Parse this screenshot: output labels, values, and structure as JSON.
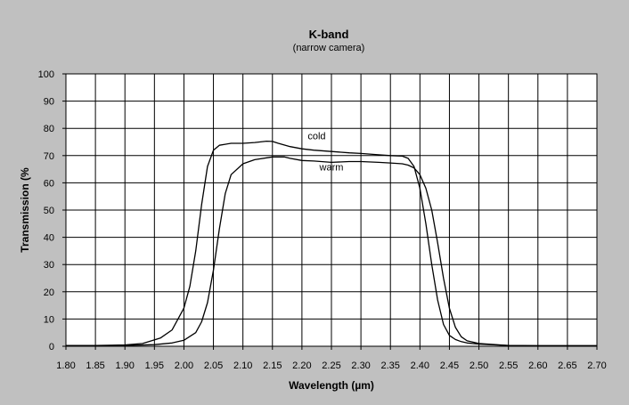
{
  "chart_data": {
    "type": "line",
    "title": "K-band",
    "subtitle": "(narrow camera)",
    "xlabel": "Wavelength (µm)",
    "ylabel": "Transmission (%",
    "xlim": [
      1.8,
      2.7
    ],
    "ylim": [
      0,
      100
    ],
    "xticks": [
      "1.80",
      "1.85",
      "1.90",
      "1.95",
      "2.00",
      "2.05",
      "2.10",
      "2.15",
      "2.20",
      "2.25",
      "2.30",
      "2.35",
      "2.40",
      "2.45",
      "2.50",
      "2.55",
      "2.60",
      "2.65",
      "2.70"
    ],
    "yticks": [
      "0",
      "10",
      "20",
      "30",
      "40",
      "50",
      "60",
      "70",
      "80",
      "90",
      "100"
    ],
    "grid": true,
    "background": "#c0c0c0",
    "plot_background": "#ffffff",
    "line_color": "#000000",
    "series": [
      {
        "name": "cold",
        "x": [
          1.8,
          1.85,
          1.9,
          1.93,
          1.96,
          1.98,
          2.0,
          2.01,
          2.02,
          2.03,
          2.04,
          2.05,
          2.06,
          2.08,
          2.1,
          2.12,
          2.14,
          2.15,
          2.16,
          2.18,
          2.2,
          2.22,
          2.25,
          2.28,
          2.3,
          2.33,
          2.35,
          2.37,
          2.38,
          2.39,
          2.4,
          2.41,
          2.42,
          2.43,
          2.44,
          2.45,
          2.46,
          2.47,
          2.48,
          2.5,
          2.55,
          2.6,
          2.7
        ],
        "y": [
          0.3,
          0.3,
          0.5,
          1.0,
          3.0,
          6.0,
          14.0,
          22.0,
          35.0,
          52.0,
          66.0,
          72.0,
          73.8,
          74.5,
          74.5,
          74.8,
          75.3,
          75.2,
          74.5,
          73.3,
          72.5,
          72.0,
          71.5,
          71.0,
          70.8,
          70.3,
          70.0,
          69.8,
          69.0,
          66.0,
          58.0,
          45.0,
          30.0,
          17.0,
          8.0,
          4.0,
          2.5,
          1.7,
          1.2,
          0.8,
          0.3,
          0.2,
          0.2
        ]
      },
      {
        "name": "warm",
        "x": [
          1.8,
          1.85,
          1.9,
          1.95,
          1.98,
          2.0,
          2.02,
          2.03,
          2.04,
          2.05,
          2.06,
          2.07,
          2.08,
          2.1,
          2.12,
          2.15,
          2.17,
          2.18,
          2.2,
          2.22,
          2.25,
          2.28,
          2.3,
          2.33,
          2.35,
          2.37,
          2.38,
          2.39,
          2.4,
          2.41,
          2.42,
          2.43,
          2.44,
          2.45,
          2.46,
          2.47,
          2.48,
          2.5,
          2.55,
          2.6,
          2.7
        ],
        "y": [
          0.3,
          0.3,
          0.3,
          0.6,
          1.2,
          2.2,
          5.0,
          9.0,
          16.0,
          28.0,
          43.0,
          56.0,
          63.0,
          67.0,
          68.5,
          69.5,
          69.5,
          69.0,
          68.2,
          68.0,
          67.5,
          67.8,
          67.8,
          67.5,
          67.3,
          67.0,
          66.5,
          65.5,
          63.0,
          58.0,
          50.0,
          38.0,
          25.0,
          14.0,
          7.0,
          3.5,
          2.0,
          1.0,
          0.3,
          0.2,
          0.2
        ]
      }
    ],
    "annotations": [
      {
        "text": "cold",
        "x": 2.225,
        "y": 76
      },
      {
        "text": "warm",
        "x": 2.25,
        "y": 64.5
      }
    ]
  }
}
